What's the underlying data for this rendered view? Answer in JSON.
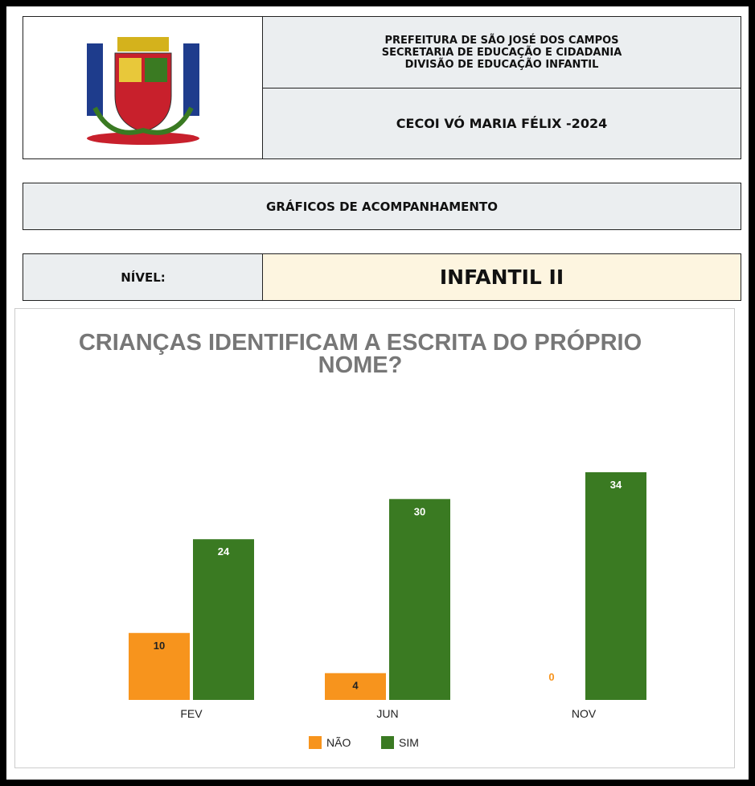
{
  "header": {
    "lines": [
      "PREFEITURA DE SÃO JOSÉ DOS CAMPOS",
      "SECRETARIA DE EDUCAÇÃO E CIDADANIA",
      "DIVISÃO DE EDUCAÇÃO INFANTIL"
    ],
    "school": "CECOI VÓ MARIA FÉLIX -2024"
  },
  "section_title": "GRÁFICOS DE ACOMPANHAMENTO",
  "level": {
    "label": "NÍVEL:",
    "value": "INFANTIL II"
  },
  "chart_data": {
    "type": "bar",
    "title": "CRIANÇAS IDENTIFICAM A ESCRITA DO PRÓPRIO NOME?",
    "categories": [
      "FEV",
      "JUN",
      "NOV"
    ],
    "series": [
      {
        "name": "NÃO",
        "color": "#f7941d",
        "values": [
          10,
          4,
          0
        ]
      },
      {
        "name": "SIM",
        "color": "#3a7a22",
        "values": [
          24,
          30,
          34
        ]
      }
    ],
    "legend": "bottom"
  }
}
